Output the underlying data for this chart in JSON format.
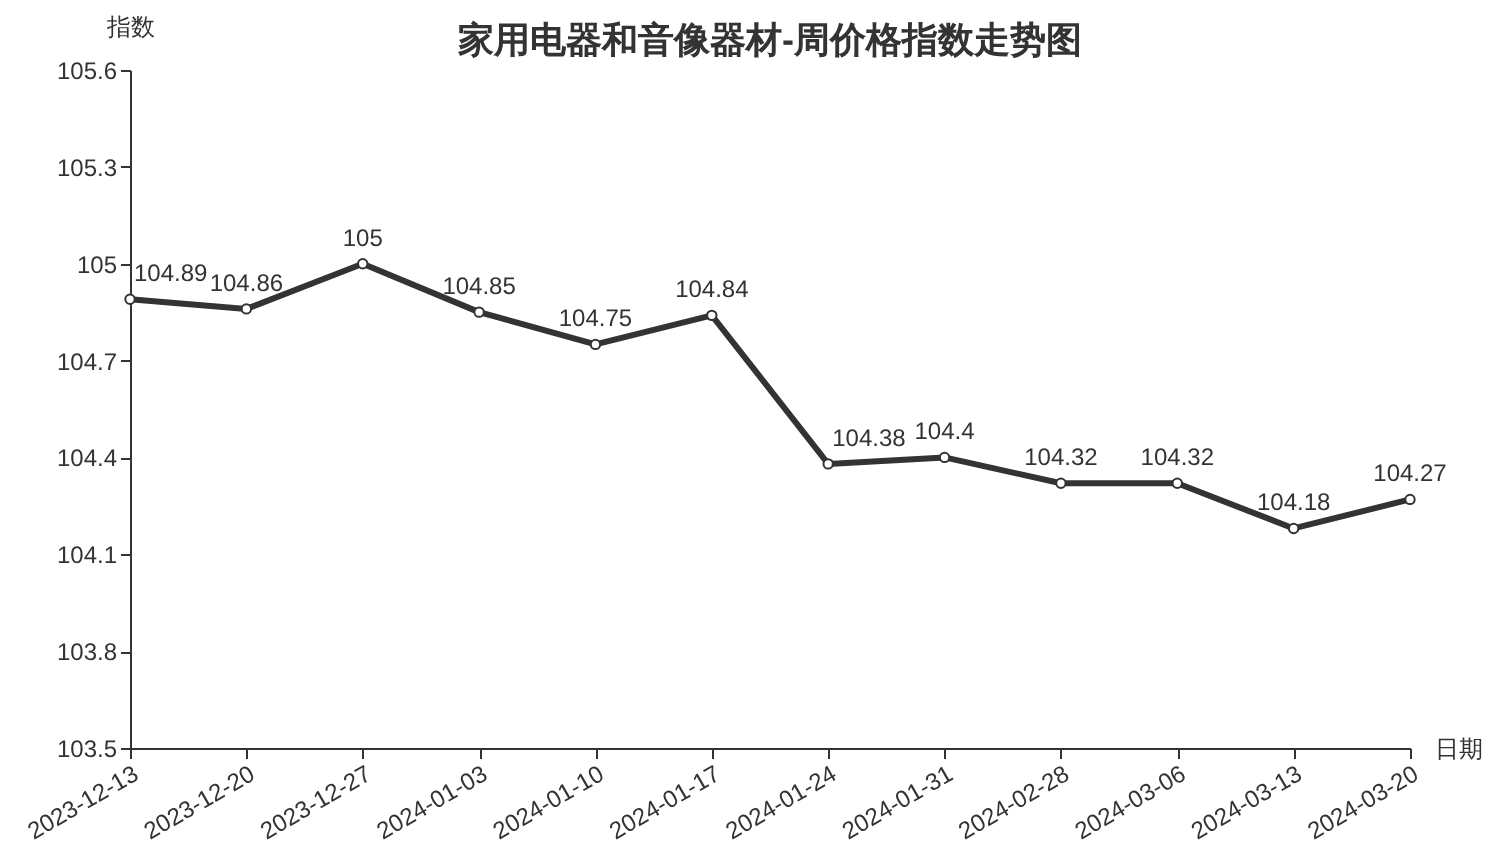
{
  "chart_data": {
    "type": "line",
    "title": "家用电器和音像器材-周价格指数走势图",
    "xlabel": "日期",
    "ylabel": "指数",
    "categories": [
      "2023-12-13",
      "2023-12-20",
      "2023-12-27",
      "2024-01-03",
      "2024-01-10",
      "2024-01-17",
      "2024-01-24",
      "2024-01-31",
      "2024-02-28",
      "2024-03-06",
      "2024-03-13",
      "2024-03-20"
    ],
    "series": [
      {
        "color": "#333333",
        "values": [
          104.89,
          104.86,
          105,
          104.85,
          104.75,
          104.84,
          104.38,
          104.4,
          104.32,
          104.32,
          104.18,
          104.27
        ]
      }
    ],
    "ylim": [
      103.5,
      105.6
    ],
    "yticks": [
      103.5,
      103.8,
      104.1,
      104.4,
      104.7,
      105,
      105.3,
      105.6
    ],
    "grid": false,
    "marker": "circle",
    "line_style": "solid",
    "data_labels": true
  }
}
